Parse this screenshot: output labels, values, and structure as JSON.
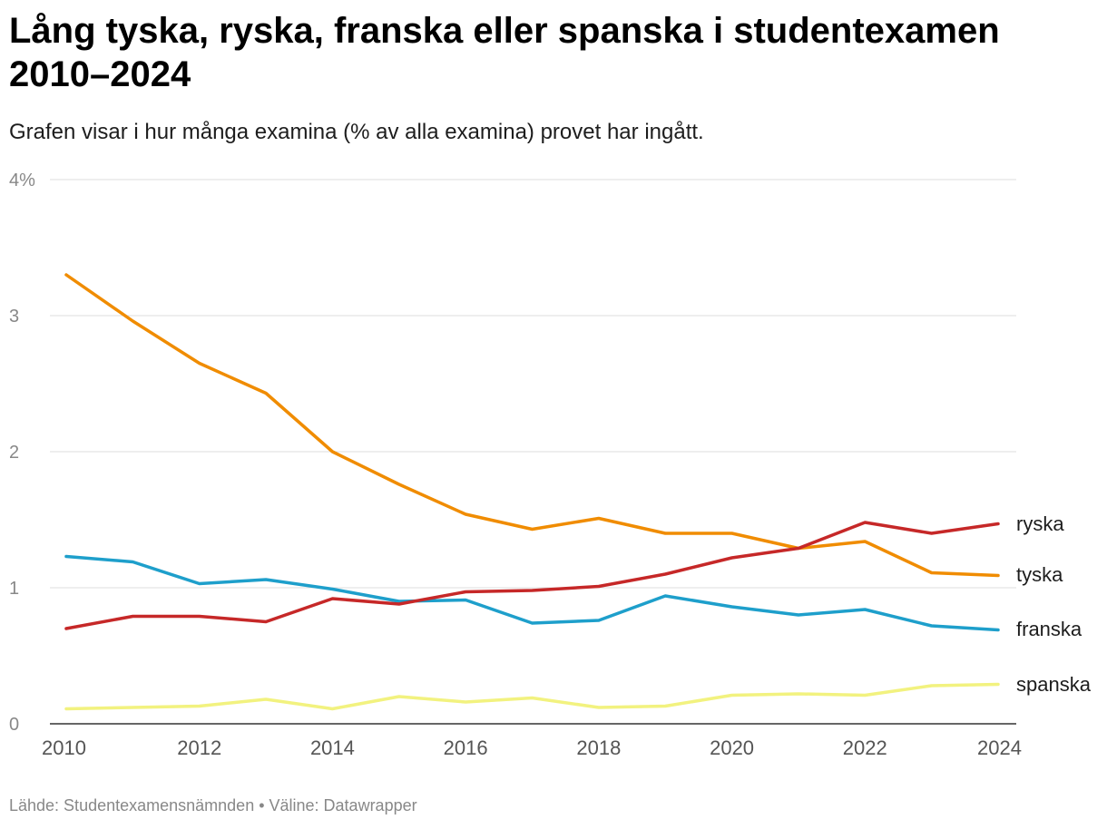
{
  "title": "Lång tyska, ryska, franska eller spanska i studentexamen 2010–2024",
  "subtitle": "Grafen visar i hur många examina (% av alla examina) provet har ingått.",
  "footer": "Lähde: Studentexamensnämnden • Väline: Datawrapper",
  "chart_data": {
    "type": "line",
    "x": [
      2010,
      2011,
      2012,
      2013,
      2014,
      2015,
      2016,
      2017,
      2018,
      2019,
      2020,
      2021,
      2022,
      2023,
      2024
    ],
    "x_ticks": [
      "2010",
      "2012",
      "2014",
      "2016",
      "2018",
      "2020",
      "2022",
      "2024"
    ],
    "y_ticks": [
      "0",
      "1",
      "2",
      "3",
      "4%"
    ],
    "ylim": [
      0,
      4
    ],
    "grid": true,
    "series": [
      {
        "name": "tyska",
        "color": "#f08c00",
        "values": [
          3.3,
          2.96,
          2.65,
          2.43,
          2.0,
          1.76,
          1.54,
          1.43,
          1.51,
          1.4,
          1.4,
          1.29,
          1.34,
          1.11,
          1.09
        ]
      },
      {
        "name": "ryska",
        "color": "#c62828",
        "values": [
          0.7,
          0.79,
          0.79,
          0.75,
          0.92,
          0.88,
          0.97,
          0.98,
          1.01,
          1.1,
          1.22,
          1.29,
          1.48,
          1.4,
          1.47
        ]
      },
      {
        "name": "franska",
        "color": "#1e9fcb",
        "values": [
          1.23,
          1.19,
          1.03,
          1.06,
          0.99,
          0.9,
          0.91,
          0.74,
          0.76,
          0.94,
          0.86,
          0.8,
          0.84,
          0.72,
          0.69
        ]
      },
      {
        "name": "spanska",
        "color": "#f2f27f",
        "values": [
          0.11,
          0.12,
          0.13,
          0.18,
          0.11,
          0.2,
          0.16,
          0.19,
          0.12,
          0.13,
          0.21,
          0.22,
          0.21,
          0.28,
          0.29
        ]
      }
    ]
  }
}
